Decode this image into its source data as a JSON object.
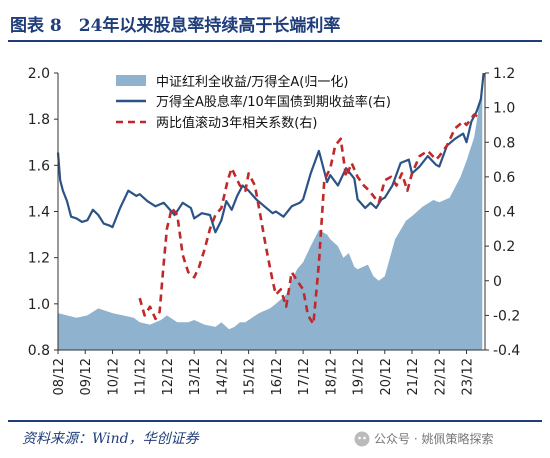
{
  "figure_title": "图表 8　24年以来股息率持续高于长端利率",
  "source_note": "资料来源：Wind，华创证券",
  "watermark": "公众号 · 姚佩策略探索",
  "colors": {
    "area": "#8fb3cf",
    "yield_line": "#2b5386",
    "corr_line": "#c0282a",
    "title": "#1f3d7a"
  },
  "chart_data": {
    "type": "area",
    "x_ticks": [
      "08/12",
      "09/12",
      "10/12",
      "11/12",
      "12/12",
      "13/12",
      "14/12",
      "15/12",
      "16/12",
      "17/12",
      "18/12",
      "19/12",
      "20/12",
      "21/12",
      "22/12",
      "23/12"
    ],
    "y_left": {
      "ylim": [
        0.8,
        2.0
      ],
      "ticks": [
        "0.8",
        "1.0",
        "1.2",
        "1.4",
        "1.6",
        "1.8",
        "2.0"
      ]
    },
    "y_right": {
      "ylim": [
        -0.4,
        1.2
      ],
      "ticks": [
        "-0.4",
        "-0.2",
        "0",
        "0.2",
        "0.4",
        "0.6",
        "0.8",
        "1.0",
        "1.2"
      ]
    },
    "legend_position": "top-center",
    "grid": false,
    "series": [
      {
        "name": "中证红利全收益/万得全A(归一化)",
        "type": "area",
        "axis": "left",
        "x": [
          2008.92,
          2009.25,
          2009.6,
          2010.0,
          2010.4,
          2010.92,
          2011.3,
          2011.7,
          2011.92,
          2012.3,
          2012.7,
          2012.92,
          2013.3,
          2013.7,
          2013.92,
          2014.3,
          2014.7,
          2014.92,
          2015.2,
          2015.4,
          2015.6,
          2015.8,
          2015.92,
          2016.3,
          2016.7,
          2016.92,
          2017.3,
          2017.5,
          2017.7,
          2017.92,
          2018.2,
          2018.5,
          2018.8,
          2018.92,
          2019.2,
          2019.4,
          2019.6,
          2019.8,
          2019.92,
          2020.3,
          2020.5,
          2020.7,
          2020.92,
          2021.3,
          2021.7,
          2021.92,
          2022.3,
          2022.7,
          2022.92,
          2023.3,
          2023.7,
          2023.92,
          2024.2,
          2024.35,
          2024.5
        ],
        "values": [
          0.96,
          0.95,
          0.94,
          0.95,
          0.98,
          0.96,
          0.95,
          0.94,
          0.92,
          0.91,
          0.93,
          0.95,
          0.92,
          0.92,
          0.93,
          0.91,
          0.9,
          0.92,
          0.89,
          0.9,
          0.92,
          0.92,
          0.93,
          0.96,
          0.98,
          1.0,
          1.04,
          1.1,
          1.15,
          1.18,
          1.25,
          1.32,
          1.3,
          1.28,
          1.25,
          1.2,
          1.22,
          1.16,
          1.15,
          1.17,
          1.12,
          1.1,
          1.12,
          1.28,
          1.36,
          1.38,
          1.42,
          1.45,
          1.44,
          1.46,
          1.55,
          1.62,
          1.72,
          1.83,
          1.95
        ]
      },
      {
        "name": "万得全A股息率/10年国债到期收益率(右)",
        "type": "line",
        "axis": "right",
        "x": [
          2008.92,
          2009.0,
          2009.1,
          2009.25,
          2009.4,
          2009.6,
          2009.8,
          2010.0,
          2010.2,
          2010.4,
          2010.6,
          2010.8,
          2010.92,
          2011.2,
          2011.5,
          2011.8,
          2011.92,
          2012.2,
          2012.5,
          2012.8,
          2012.92,
          2013.2,
          2013.5,
          2013.8,
          2013.92,
          2014.2,
          2014.5,
          2014.7,
          2014.92,
          2015.1,
          2015.3,
          2015.5,
          2015.7,
          2015.92,
          2016.2,
          2016.5,
          2016.8,
          2016.92,
          2017.2,
          2017.5,
          2017.8,
          2017.92,
          2018.2,
          2018.5,
          2018.8,
          2018.92,
          2019.2,
          2019.5,
          2019.8,
          2019.92,
          2020.2,
          2020.4,
          2020.6,
          2020.8,
          2020.92,
          2021.2,
          2021.5,
          2021.8,
          2021.92,
          2022.2,
          2022.5,
          2022.8,
          2022.92,
          2023.2,
          2023.5,
          2023.8,
          2023.92,
          2024.1,
          2024.3,
          2024.45,
          2024.55
        ],
        "values": [
          0.74,
          0.58,
          0.52,
          0.46,
          0.37,
          0.36,
          0.34,
          0.35,
          0.41,
          0.38,
          0.33,
          0.32,
          0.31,
          0.42,
          0.52,
          0.49,
          0.5,
          0.46,
          0.43,
          0.45,
          0.43,
          0.38,
          0.45,
          0.42,
          0.36,
          0.39,
          0.38,
          0.28,
          0.35,
          0.46,
          0.41,
          0.49,
          0.55,
          0.52,
          0.47,
          0.43,
          0.39,
          0.4,
          0.37,
          0.43,
          0.45,
          0.47,
          0.62,
          0.75,
          0.57,
          0.61,
          0.55,
          0.65,
          0.59,
          0.47,
          0.42,
          0.45,
          0.42,
          0.47,
          0.48,
          0.55,
          0.68,
          0.7,
          0.62,
          0.66,
          0.72,
          0.67,
          0.66,
          0.78,
          0.82,
          0.85,
          0.8,
          0.92,
          0.98,
          1.05,
          1.2
        ]
      },
      {
        "name": "两比值滚动3年相关系数(右)",
        "type": "line",
        "axis": "right",
        "style": "dashed",
        "x": [
          2011.92,
          2012.1,
          2012.3,
          2012.5,
          2012.65,
          2012.8,
          2012.92,
          2013.1,
          2013.3,
          2013.5,
          2013.7,
          2013.92,
          2014.1,
          2014.3,
          2014.5,
          2014.7,
          2014.92,
          2015.15,
          2015.3,
          2015.45,
          2015.6,
          2015.8,
          2015.92,
          2016.15,
          2016.35,
          2016.55,
          2016.8,
          2016.92,
          2017.1,
          2017.3,
          2017.5,
          2017.7,
          2017.92,
          2018.1,
          2018.3,
          2018.5,
          2018.7,
          2018.92,
          2019.1,
          2019.3,
          2019.5,
          2019.7,
          2019.92,
          2020.15,
          2020.35,
          2020.55,
          2020.7,
          2020.92,
          2021.15,
          2021.35,
          2021.55,
          2021.75,
          2021.92,
          2022.2,
          2022.5,
          2022.8,
          2022.92,
          2023.2,
          2023.5,
          2023.8,
          2023.92,
          2024.2,
          2024.45
        ],
        "values": [
          -0.1,
          -0.2,
          -0.15,
          -0.22,
          -0.18,
          0.1,
          0.3,
          0.42,
          0.38,
          0.15,
          0.05,
          0.02,
          0.08,
          0.18,
          0.3,
          0.38,
          0.42,
          0.58,
          0.65,
          0.6,
          0.55,
          0.52,
          0.62,
          0.55,
          0.38,
          0.2,
          0.0,
          -0.08,
          -0.05,
          -0.15,
          0.05,
          0.0,
          -0.05,
          -0.2,
          -0.25,
          0.1,
          0.58,
          0.65,
          0.78,
          0.82,
          0.6,
          0.68,
          0.6,
          0.55,
          0.52,
          0.48,
          0.45,
          0.58,
          0.6,
          0.55,
          0.62,
          0.52,
          0.62,
          0.72,
          0.75,
          0.7,
          0.72,
          0.78,
          0.88,
          0.92,
          0.9,
          0.96,
          0.94
        ]
      }
    ]
  }
}
